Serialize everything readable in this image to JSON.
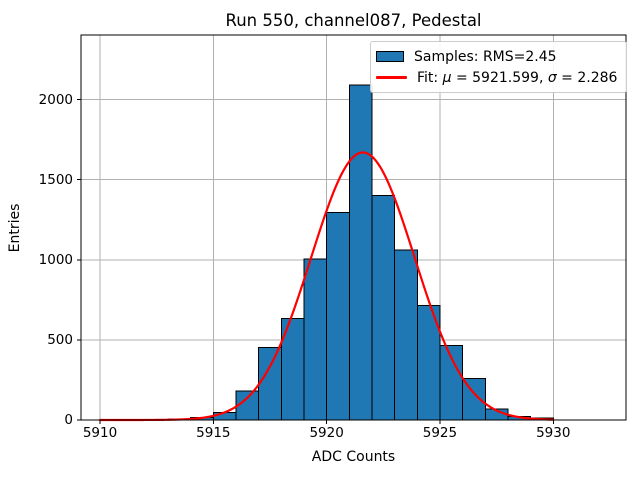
{
  "chart_data": {
    "type": "bar",
    "subtype": "histogram",
    "title": "Run 550, channel087, Pedestal",
    "xlabel": "ADC Counts",
    "ylabel": "Entries",
    "xlim": [
      5909.16,
      5933.21
    ],
    "ylim": [
      0,
      2403
    ],
    "xticks": [
      5910,
      5915,
      5920,
      5925,
      5930
    ],
    "yticks": [
      0,
      500,
      1000,
      1500,
      2000
    ],
    "grid": true,
    "bin_edges": [
      5913,
      5914,
      5915,
      5916,
      5917,
      5918,
      5919,
      5920,
      5921,
      5922,
      5923,
      5924,
      5925,
      5926,
      5927,
      5928,
      5929,
      5930
    ],
    "counts": [
      5,
      15,
      48,
      180,
      453,
      635,
      1005,
      1295,
      2090,
      1400,
      1060,
      715,
      465,
      258,
      70,
      22,
      12
    ],
    "fit": {
      "mu": 5921.599,
      "sigma": 2.286,
      "amplitude": 1670,
      "x_range": [
        5910,
        5930
      ]
    },
    "legend_position": "upper-right",
    "colors": {
      "bar_fill": "#1f77b4",
      "bar_edge": "#000000",
      "fit_line": "#ff0000",
      "grid": "#b0b0b0",
      "axis": "#000000",
      "background": "#ffffff",
      "legend_border": "#cccccc"
    }
  },
  "legend": {
    "samples_label": "Samples: RMS=2.45",
    "fit": {
      "prefix": "Fit: ",
      "mu_symbol": "μ",
      "mu_eq": " = 5921.599, ",
      "sigma_symbol": "σ",
      "sigma_eq": " = 2.286"
    }
  }
}
